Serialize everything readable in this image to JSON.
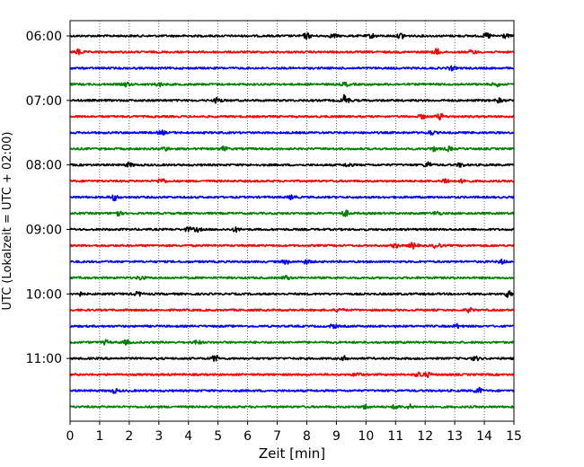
{
  "chart_data": {
    "type": "line",
    "title": "",
    "xlabel": "Zeit  [min]",
    "ylabel": "UTC (Lokalzeit = UTC + 02:00)",
    "xlim": [
      0,
      15
    ],
    "x_ticks": [
      "0",
      "1",
      "2",
      "3",
      "4",
      "5",
      "6",
      "7",
      "8",
      "9",
      "10",
      "11",
      "12",
      "13",
      "14",
      "15"
    ],
    "y_ticks": [
      "06:00",
      "07:00",
      "08:00",
      "09:00",
      "10:00",
      "11:00"
    ],
    "grid_x": true,
    "grid_style": "dotted",
    "colors_cycle": [
      "#000000",
      "#ff0000",
      "#0000ff",
      "#008000"
    ],
    "trace_interval_minutes": 15,
    "series": [
      {
        "start": "06:00",
        "color": "#000000",
        "bursts": [
          [
            8.0,
            3
          ],
          [
            8.9,
            2
          ],
          [
            10.2,
            2
          ],
          [
            11.2,
            3
          ],
          [
            14.1,
            3
          ],
          [
            14.7,
            2
          ]
        ]
      },
      {
        "start": "06:15",
        "color": "#ff0000",
        "bursts": [
          [
            0.3,
            3
          ],
          [
            12.4,
            3
          ],
          [
            13.6,
            2
          ]
        ]
      },
      {
        "start": "06:30",
        "color": "#0000ff",
        "bursts": [
          [
            12.9,
            2
          ]
        ]
      },
      {
        "start": "06:45",
        "color": "#008000",
        "bursts": [
          [
            1.9,
            2
          ],
          [
            3.0,
            2
          ],
          [
            9.3,
            2
          ],
          [
            14.4,
            2
          ]
        ]
      },
      {
        "start": "07:00",
        "color": "#000000",
        "bursts": [
          [
            5.0,
            3
          ],
          [
            9.3,
            6
          ],
          [
            14.5,
            2
          ]
        ]
      },
      {
        "start": "07:15",
        "color": "#ff0000",
        "bursts": [
          [
            11.9,
            2
          ],
          [
            12.5,
            3
          ]
        ]
      },
      {
        "start": "07:30",
        "color": "#0000ff",
        "bursts": [
          [
            3.1,
            2
          ],
          [
            12.2,
            2
          ]
        ]
      },
      {
        "start": "07:45",
        "color": "#008000",
        "bursts": [
          [
            3.2,
            2
          ],
          [
            5.2,
            2
          ],
          [
            12.3,
            2
          ],
          [
            12.8,
            2
          ]
        ]
      },
      {
        "start": "08:00",
        "color": "#000000",
        "bursts": [
          [
            2.0,
            2
          ],
          [
            9.4,
            2
          ],
          [
            12.1,
            3
          ],
          [
            13.2,
            2
          ]
        ]
      },
      {
        "start": "08:15",
        "color": "#ff0000",
        "bursts": [
          [
            3.1,
            3
          ],
          [
            12.7,
            3
          ],
          [
            13.3,
            2
          ]
        ]
      },
      {
        "start": "08:30",
        "color": "#0000ff",
        "bursts": [
          [
            1.5,
            3
          ],
          [
            7.5,
            2
          ]
        ]
      },
      {
        "start": "08:45",
        "color": "#008000",
        "bursts": [
          [
            1.6,
            3
          ],
          [
            9.3,
            3
          ],
          [
            12.4,
            2
          ]
        ]
      },
      {
        "start": "09:00",
        "color": "#000000",
        "bursts": [
          [
            4.0,
            2
          ],
          [
            4.3,
            2
          ],
          [
            5.6,
            2
          ]
        ]
      },
      {
        "start": "09:15",
        "color": "#ff0000",
        "bursts": [
          [
            11.0,
            2
          ],
          [
            11.6,
            3
          ],
          [
            12.4,
            3
          ]
        ]
      },
      {
        "start": "09:30",
        "color": "#0000ff",
        "bursts": [
          [
            7.3,
            2
          ],
          [
            8.0,
            2
          ],
          [
            14.6,
            2
          ]
        ]
      },
      {
        "start": "09:45",
        "color": "#008000",
        "bursts": [
          [
            2.4,
            2
          ],
          [
            7.3,
            2
          ]
        ]
      },
      {
        "start": "10:00",
        "color": "#000000",
        "bursts": [
          [
            0.3,
            2
          ],
          [
            2.3,
            2
          ],
          [
            14.8,
            3
          ]
        ]
      },
      {
        "start": "10:15",
        "color": "#ff0000",
        "bursts": [
          [
            9.1,
            2
          ],
          [
            13.5,
            2
          ]
        ]
      },
      {
        "start": "10:30",
        "color": "#0000ff",
        "bursts": [
          [
            8.9,
            2
          ],
          [
            13.1,
            2
          ]
        ]
      },
      {
        "start": "10:45",
        "color": "#008000",
        "bursts": [
          [
            1.2,
            2
          ],
          [
            1.9,
            2
          ],
          [
            4.3,
            2
          ]
        ]
      },
      {
        "start": "11:00",
        "color": "#000000",
        "bursts": [
          [
            4.9,
            3
          ],
          [
            9.3,
            2
          ],
          [
            13.7,
            2
          ]
        ]
      },
      {
        "start": "11:15",
        "color": "#ff0000",
        "bursts": [
          [
            9.7,
            2
          ],
          [
            11.8,
            3
          ],
          [
            12.1,
            2
          ]
        ]
      },
      {
        "start": "11:30",
        "color": "#0000ff",
        "bursts": [
          [
            1.5,
            2
          ],
          [
            13.8,
            3
          ]
        ]
      },
      {
        "start": "11:45",
        "color": "#008000",
        "bursts": [
          [
            10.0,
            2
          ],
          [
            11.0,
            2
          ],
          [
            11.5,
            2
          ]
        ]
      }
    ]
  }
}
